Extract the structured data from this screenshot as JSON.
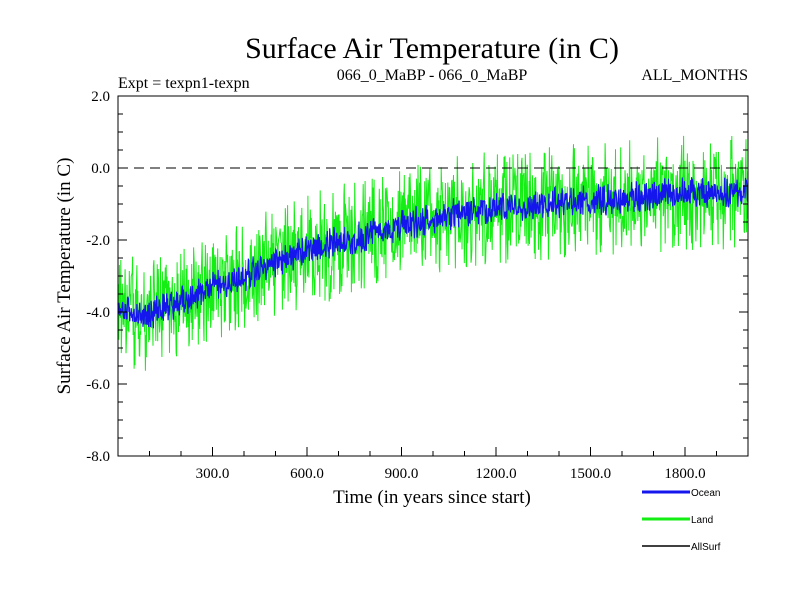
{
  "chart_data": {
    "type": "line",
    "title": "Surface Air Temperature (in C)",
    "subtitle_left": "Expt = texpn1-texpn",
    "subtitle_center": "066_0_MaBP - 066_0_MaBP",
    "subtitle_right": "ALL_MONTHS",
    "xlabel": "Time (in years since start)",
    "ylabel": "Surface Air Temperature (in C)",
    "xlim": [
      0,
      2000
    ],
    "ylim": [
      -8.0,
      2.0
    ],
    "xticks": [
      300,
      600,
      900,
      1200,
      1500,
      1800
    ],
    "xtick_labels": [
      "300.0",
      "600.0",
      "900.0",
      "1200.0",
      "1500.0",
      "1800.0"
    ],
    "yticks": [
      2.0,
      0.0,
      -2.0,
      -4.0,
      -6.0,
      -8.0
    ],
    "ytick_labels": [
      "2.0",
      "0.0",
      "-2.0",
      "-4.0",
      "-6.0",
      "-8.0"
    ],
    "reference_line": {
      "y": 0.0,
      "style": "dashed"
    },
    "series": [
      {
        "name": "Ocean",
        "color": "#1515ee",
        "trend_years": [
          0,
          60,
          120,
          200,
          300,
          400,
          500,
          600,
          700,
          800,
          900,
          1000,
          1100,
          1200,
          1300,
          1400,
          1500,
          1600,
          1700,
          1800,
          1900,
          2000
        ],
        "trend_values": [
          -3.9,
          -4.1,
          -4.0,
          -3.7,
          -3.3,
          -3.0,
          -2.6,
          -2.3,
          -2.05,
          -1.85,
          -1.6,
          -1.4,
          -1.2,
          -1.1,
          -1.05,
          -0.95,
          -0.9,
          -0.85,
          -0.75,
          -0.7,
          -0.7,
          -0.7
        ],
        "spread_low": 0.45,
        "spread_high": 0.45
      },
      {
        "name": "Land",
        "color": "#15ee15",
        "trend_years": [
          0,
          60,
          120,
          200,
          300,
          400,
          500,
          600,
          700,
          800,
          900,
          1000,
          1100,
          1200,
          1300,
          1400,
          1500,
          1600,
          1700,
          1800,
          1900,
          2000
        ],
        "trend_values": [
          -3.9,
          -4.1,
          -4.0,
          -3.7,
          -3.3,
          -3.0,
          -2.6,
          -2.3,
          -2.05,
          -1.85,
          -1.6,
          -1.4,
          -1.2,
          -1.1,
          -1.05,
          -0.95,
          -0.9,
          -0.85,
          -0.75,
          -0.7,
          -0.7,
          -0.7
        ],
        "spread_low": 1.6,
        "spread_high": 1.6,
        "max_value": 1.6,
        "min_value": -6.2
      },
      {
        "name": "AllSurf",
        "color": "#000000"
      }
    ],
    "legend": {
      "entries": [
        "Ocean",
        "Land",
        "AllSurf"
      ],
      "position": "bottom-right"
    }
  }
}
